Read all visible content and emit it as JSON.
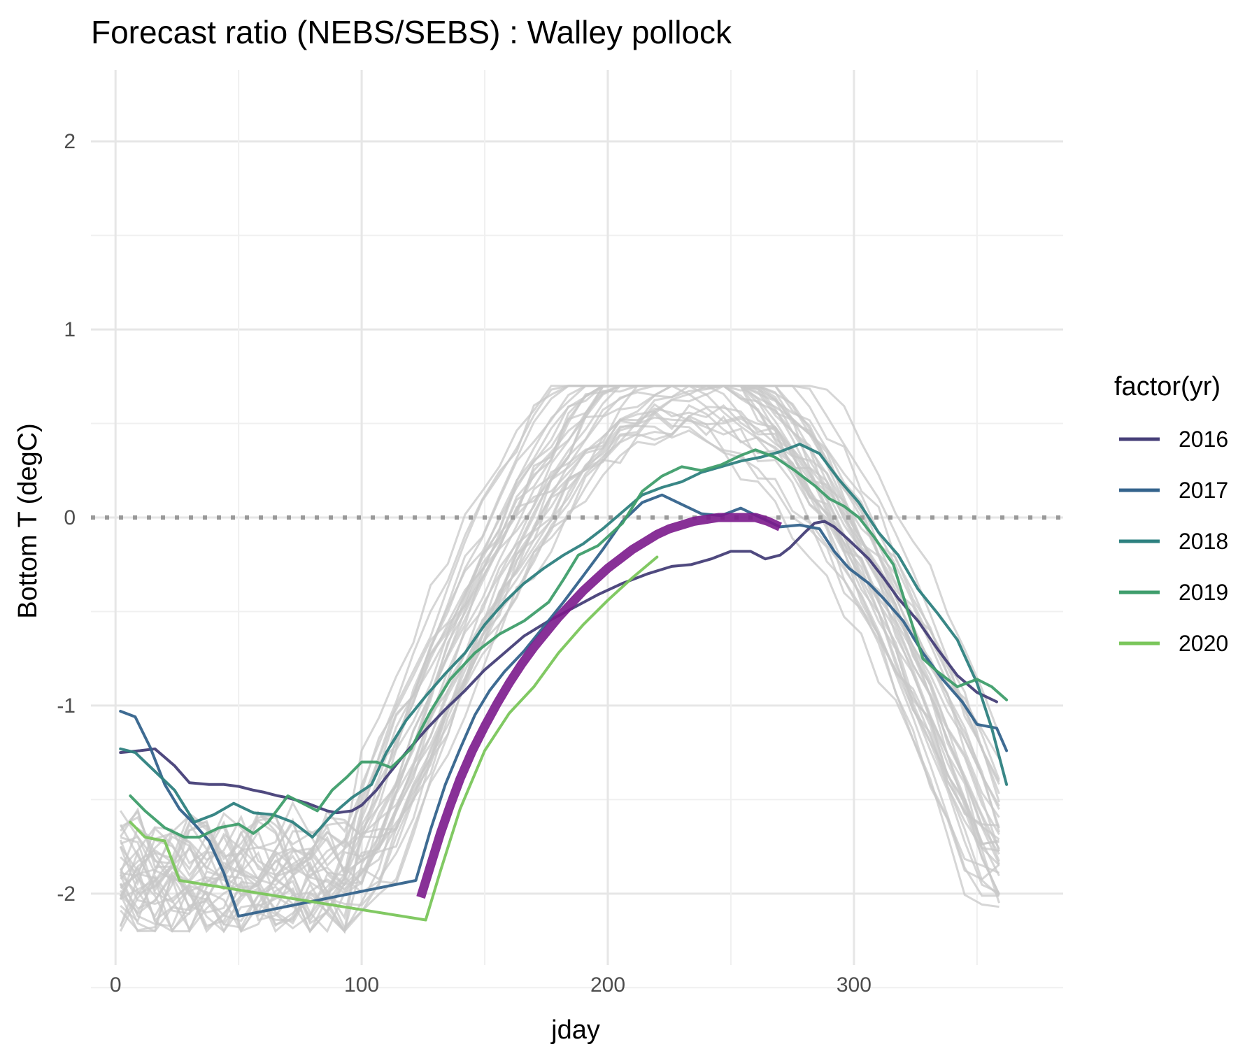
{
  "chart_data": {
    "type": "line",
    "title": "Forecast ratio (NEBS/SEBS) : Walley pollock",
    "xlabel": "jday",
    "ylabel": "Bottom T (degC)",
    "xlim": [
      -10,
      385
    ],
    "ylim": [
      -2.38,
      2.38
    ],
    "x_ticks": [
      0,
      100,
      200,
      300
    ],
    "x_tick_labels": [
      "0",
      "100",
      "200",
      "300"
    ],
    "y_ticks": [
      -2,
      -1,
      0,
      1,
      2
    ],
    "y_tick_labels": [
      "-2",
      "-1",
      "0",
      "1",
      "2"
    ],
    "grid": true,
    "reference_line": {
      "y": 0,
      "style": "dotted",
      "color": "#999999"
    },
    "legend": {
      "title": "factor(yr)",
      "placement": "right"
    },
    "series": [
      {
        "name": "2016",
        "color": "#463f78",
        "x": [
          2,
          10,
          16,
          24,
          30,
          38,
          44,
          50,
          56,
          60,
          66,
          70,
          78,
          82,
          86,
          90,
          96,
          100,
          106,
          110,
          118,
          126,
          134,
          142,
          150,
          158,
          166,
          176,
          186,
          196,
          206,
          216,
          226,
          234,
          242,
          250,
          258,
          264,
          270,
          274,
          280,
          284,
          288,
          292,
          298,
          306,
          312,
          318,
          326,
          334,
          342,
          350,
          358
        ],
        "y": [
          -1.25,
          -1.24,
          -1.23,
          -1.32,
          -1.41,
          -1.42,
          -1.42,
          -1.43,
          -1.45,
          -1.46,
          -1.48,
          -1.49,
          -1.52,
          -1.54,
          -1.56,
          -1.57,
          -1.56,
          -1.53,
          -1.45,
          -1.38,
          -1.25,
          -1.13,
          -1.02,
          -0.92,
          -0.81,
          -0.72,
          -0.63,
          -0.55,
          -0.48,
          -0.41,
          -0.35,
          -0.3,
          -0.26,
          -0.25,
          -0.22,
          -0.18,
          -0.18,
          -0.22,
          -0.2,
          -0.16,
          -0.08,
          -0.03,
          -0.02,
          -0.05,
          -0.12,
          -0.22,
          -0.32,
          -0.43,
          -0.55,
          -0.7,
          -0.84,
          -0.93,
          -0.98
        ]
      },
      {
        "name": "2017",
        "color": "#34638c",
        "x": [
          2,
          8,
          14,
          20,
          26,
          32,
          38,
          44,
          50,
          122,
          128,
          134,
          140,
          146,
          152,
          158,
          166,
          174,
          182,
          190,
          198,
          206,
          214,
          222,
          230,
          238,
          246,
          254,
          262,
          270,
          278,
          286,
          292,
          298,
          306,
          312,
          320,
          328,
          336,
          344,
          350,
          358,
          362
        ],
        "y": [
          -1.03,
          -1.06,
          -1.22,
          -1.42,
          -1.55,
          -1.63,
          -1.72,
          -1.89,
          -2.12,
          -1.93,
          -1.66,
          -1.42,
          -1.23,
          -1.05,
          -0.92,
          -0.82,
          -0.71,
          -0.58,
          -0.45,
          -0.31,
          -0.17,
          -0.02,
          0.08,
          0.12,
          0.07,
          0.02,
          0.01,
          0.05,
          0.0,
          -0.05,
          -0.04,
          -0.06,
          -0.18,
          -0.27,
          -0.35,
          -0.43,
          -0.55,
          -0.72,
          -0.86,
          -0.98,
          -1.1,
          -1.12,
          -1.24
        ]
      },
      {
        "name": "2018",
        "color": "#2e8180",
        "x": [
          2,
          8,
          16,
          24,
          32,
          40,
          48,
          56,
          64,
          72,
          80,
          88,
          96,
          104,
          110,
          118,
          126,
          134,
          142,
          150,
          158,
          166,
          174,
          182,
          190,
          198,
          206,
          214,
          222,
          230,
          238,
          246,
          254,
          262,
          270,
          278,
          286,
          294,
          302,
          310,
          318,
          326,
          334,
          342,
          350,
          356,
          362
        ],
        "y": [
          -1.23,
          -1.25,
          -1.35,
          -1.45,
          -1.62,
          -1.58,
          -1.52,
          -1.57,
          -1.58,
          -1.62,
          -1.7,
          -1.58,
          -1.49,
          -1.42,
          -1.25,
          -1.08,
          -0.95,
          -0.83,
          -0.72,
          -0.57,
          -0.45,
          -0.35,
          -0.27,
          -0.2,
          -0.14,
          -0.06,
          0.03,
          0.12,
          0.16,
          0.19,
          0.24,
          0.27,
          0.3,
          0.32,
          0.35,
          0.39,
          0.34,
          0.2,
          0.08,
          -0.08,
          -0.2,
          -0.38,
          -0.51,
          -0.65,
          -0.88,
          -1.12,
          -1.42
        ]
      },
      {
        "name": "2019",
        "color": "#3f9e6c",
        "x": [
          6,
          12,
          20,
          28,
          34,
          42,
          50,
          56,
          62,
          70,
          76,
          82,
          88,
          94,
          100,
          106,
          112,
          120,
          128,
          136,
          146,
          156,
          166,
          176,
          182,
          188,
          196,
          206,
          214,
          222,
          230,
          238,
          246,
          254,
          260,
          268,
          276,
          284,
          290,
          296,
          302,
          308,
          316,
          322,
          328,
          334,
          342,
          350,
          356,
          362
        ],
        "y": [
          -1.48,
          -1.56,
          -1.65,
          -1.7,
          -1.7,
          -1.65,
          -1.63,
          -1.68,
          -1.62,
          -1.48,
          -1.52,
          -1.56,
          -1.45,
          -1.38,
          -1.3,
          -1.3,
          -1.33,
          -1.23,
          -1.03,
          -0.86,
          -0.72,
          -0.62,
          -0.55,
          -0.45,
          -0.33,
          -0.2,
          -0.15,
          -0.03,
          0.14,
          0.22,
          0.27,
          0.25,
          0.28,
          0.33,
          0.36,
          0.32,
          0.25,
          0.17,
          0.1,
          0.06,
          0.0,
          -0.1,
          -0.25,
          -0.5,
          -0.75,
          -0.82,
          -0.9,
          -0.86,
          -0.9,
          -0.97
        ]
      },
      {
        "name": "2020",
        "color": "#7ac65b",
        "x": [
          6,
          12,
          20,
          26,
          126,
          132,
          140,
          150,
          160,
          170,
          180,
          190,
          200,
          210,
          220
        ],
        "y": [
          -1.62,
          -1.7,
          -1.72,
          -1.93,
          -2.14,
          -1.88,
          -1.55,
          -1.24,
          -1.04,
          -0.9,
          -0.72,
          -0.57,
          -0.44,
          -0.32,
          -0.21
        ]
      },
      {
        "name": "",
        "color": "#7b1a8c",
        "x": [
          124,
          128,
          132,
          136,
          140,
          145,
          150,
          155,
          160,
          165,
          170,
          175,
          180,
          185,
          190,
          195,
          200,
          205,
          210,
          215,
          220,
          225,
          230,
          235,
          240,
          245,
          250,
          255,
          260,
          265,
          270
        ],
        "y": [
          -2.02,
          -1.85,
          -1.68,
          -1.53,
          -1.39,
          -1.24,
          -1.11,
          -0.99,
          -0.88,
          -0.78,
          -0.69,
          -0.61,
          -0.53,
          -0.46,
          -0.39,
          -0.33,
          -0.27,
          -0.22,
          -0.17,
          -0.13,
          -0.09,
          -0.06,
          -0.04,
          -0.02,
          -0.01,
          0.0,
          0.0,
          0.0,
          0.0,
          -0.02,
          -0.05
        ]
      }
    ]
  }
}
